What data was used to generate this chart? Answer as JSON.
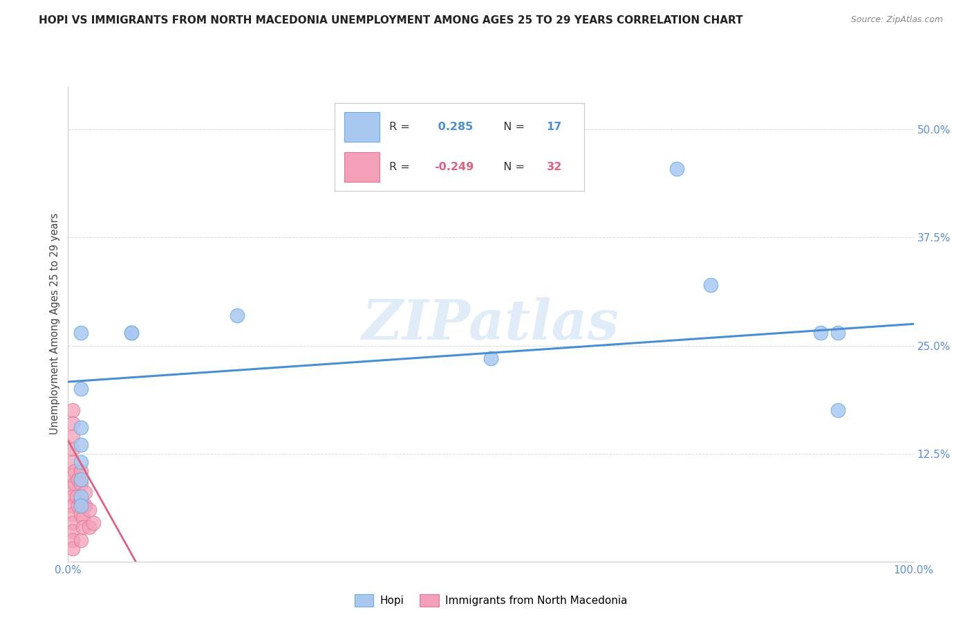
{
  "title": "HOPI VS IMMIGRANTS FROM NORTH MACEDONIA UNEMPLOYMENT AMONG AGES 25 TO 29 YEARS CORRELATION CHART",
  "source": "Source: ZipAtlas.com",
  "ylabel": "Unemployment Among Ages 25 to 29 years",
  "xlim": [
    0,
    1.0
  ],
  "ylim": [
    0,
    0.55
  ],
  "yticks": [
    0.0,
    0.125,
    0.25,
    0.375,
    0.5
  ],
  "ytick_labels": [
    "",
    "12.5%",
    "25.0%",
    "37.5%",
    "50.0%"
  ],
  "xticks": [
    0.0,
    0.25,
    0.5,
    0.75,
    1.0
  ],
  "xtick_labels": [
    "0.0%",
    "",
    "",
    "",
    "100.0%"
  ],
  "hopi_R": 0.285,
  "hopi_N": 17,
  "mac_R": -0.249,
  "mac_N": 32,
  "hopi_color": "#a8c8f0",
  "mac_color": "#f4a0b8",
  "hopi_edge_color": "#6aaee0",
  "mac_edge_color": "#e07898",
  "hopi_line_color": "#4a8fd4",
  "mac_line_color": "#e06080",
  "hopi_scatter_x": [
    0.015,
    0.075,
    0.075,
    0.2,
    0.5,
    0.76,
    0.89,
    0.91,
    0.91,
    0.72,
    0.015,
    0.015,
    0.015,
    0.015,
    0.015,
    0.015,
    0.015
  ],
  "hopi_scatter_y": [
    0.265,
    0.265,
    0.265,
    0.285,
    0.235,
    0.32,
    0.265,
    0.265,
    0.175,
    0.455,
    0.2,
    0.155,
    0.135,
    0.115,
    0.095,
    0.075,
    0.065
  ],
  "mac_scatter_x": [
    0.005,
    0.005,
    0.005,
    0.005,
    0.005,
    0.005,
    0.005,
    0.005,
    0.005,
    0.005,
    0.005,
    0.005,
    0.005,
    0.005,
    0.008,
    0.008,
    0.01,
    0.012,
    0.012,
    0.015,
    0.015,
    0.015,
    0.015,
    0.015,
    0.018,
    0.018,
    0.018,
    0.02,
    0.02,
    0.025,
    0.025,
    0.03
  ],
  "mac_scatter_y": [
    0.175,
    0.16,
    0.145,
    0.13,
    0.115,
    0.1,
    0.085,
    0.075,
    0.065,
    0.055,
    0.045,
    0.035,
    0.025,
    0.015,
    0.105,
    0.09,
    0.075,
    0.095,
    0.065,
    0.105,
    0.09,
    0.07,
    0.055,
    0.025,
    0.065,
    0.05,
    0.04,
    0.08,
    0.065,
    0.06,
    0.04,
    0.045
  ],
  "hopi_trendline_x": [
    0.0,
    1.0
  ],
  "hopi_trendline_y": [
    0.208,
    0.275
  ],
  "mac_trendline_x": [
    0.0,
    0.08
  ],
  "mac_trendline_y": [
    0.14,
    0.0
  ],
  "watermark": "ZIPatlas",
  "background_color": "#ffffff",
  "grid_color": "#d8d8d8",
  "title_fontsize": 11,
  "axis_label_color": "#5b8dd9",
  "tick_color": "#5b8dd9"
}
